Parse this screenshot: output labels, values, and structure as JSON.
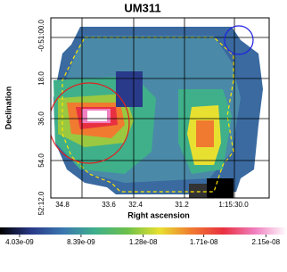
{
  "chart_data": {
    "type": "image-map",
    "title": "UM311",
    "x_label": "Right ascension",
    "y_label": "Declination",
    "x_tick_labels": [
      "34.8",
      "33.6",
      "32.4",
      "31.2",
      "1:15:30.0"
    ],
    "y_tick_labels": [
      "-0:51:00.0",
      "18.0",
      "36.0",
      "54.0",
      "52:12.0"
    ],
    "colorbar": {
      "lim": [
        2.64e-09,
        2.3e-08
      ],
      "ticks": [
        {
          "value": 4.03e-09,
          "label": "4.03e-09"
        },
        {
          "value": 8.39e-09,
          "label": "8.39e-09"
        },
        {
          "value": 1.28e-08,
          "label": "1.28e-08"
        },
        {
          "value": 1.71e-08,
          "label": "1.71e-08"
        },
        {
          "value": 2.15e-08,
          "label": "2.15e-08"
        }
      ],
      "colors": [
        "#000000",
        "#2a3a8a",
        "#3a78b0",
        "#3fb08a",
        "#6cc04a",
        "#e8e030",
        "#f07a30",
        "#e83040",
        "#f080c0",
        "#ffffff"
      ]
    }
  }
}
